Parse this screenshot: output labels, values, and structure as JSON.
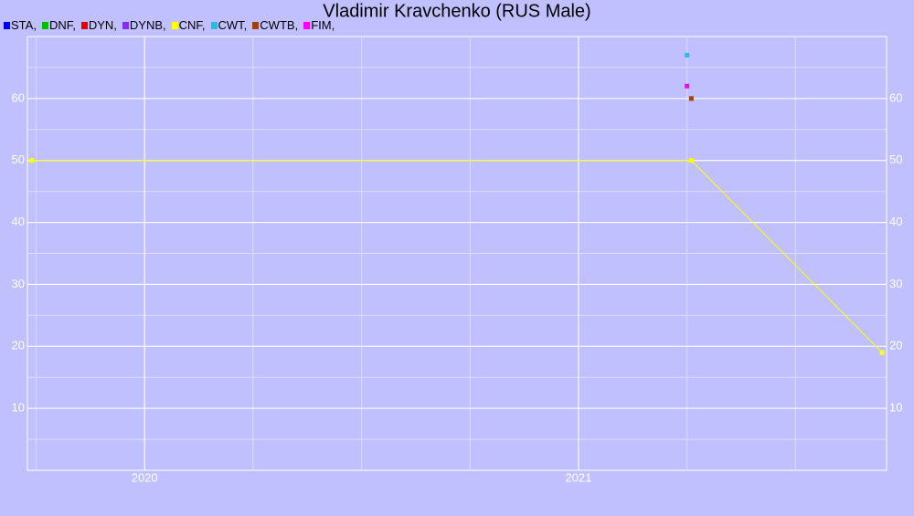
{
  "chart_data": {
    "type": "line",
    "title": "Vladimir Kravchenko (RUS Male)",
    "series": [
      {
        "name": "STA,",
        "color": "#0000ee",
        "x": [],
        "values": []
      },
      {
        "name": "DNF,",
        "color": "#00c000",
        "x": [],
        "values": []
      },
      {
        "name": "DYN,",
        "color": "#ee0000",
        "x": [],
        "values": []
      },
      {
        "name": "DYNB,",
        "color": "#8030f0",
        "x": [],
        "values": []
      },
      {
        "name": "CNF,",
        "color": "#ffff00",
        "x": [
          2019.74,
          2021.26,
          2021.7
        ],
        "values": [
          50,
          50,
          19
        ]
      },
      {
        "name": "CWT,",
        "color": "#20c0e0",
        "x": [
          2021.25
        ],
        "values": [
          67
        ]
      },
      {
        "name": "CWTB,",
        "color": "#a04010",
        "x": [
          2021.26
        ],
        "values": [
          60
        ]
      },
      {
        "name": "FIM,",
        "color": "#ff00ff",
        "x": [
          2021.25
        ],
        "values": [
          62
        ]
      }
    ],
    "xlim": [
      2019.73,
      2021.71
    ],
    "xticks": [
      2020,
      2021
    ],
    "ylim": [
      0,
      70
    ],
    "yticks": [
      10,
      20,
      30,
      40,
      50,
      60
    ],
    "grid": true
  }
}
